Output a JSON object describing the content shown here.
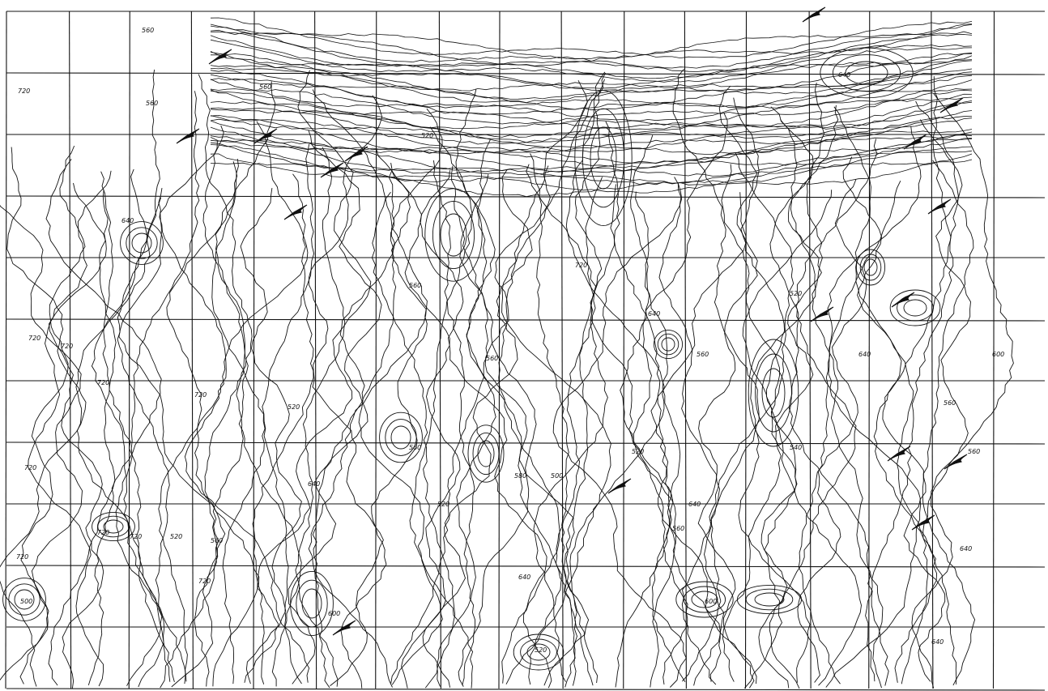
{
  "map": {
    "colors": {
      "background": "#ffffff",
      "ink": "#111111"
    },
    "grid": {
      "columns": 16,
      "rows": 11
    },
    "contour_labels": [
      "720",
      "720",
      "720",
      "720",
      "720",
      "720",
      "720",
      "720",
      "720",
      "720",
      "640",
      "640",
      "640",
      "640",
      "640",
      "640",
      "640",
      "640",
      "640",
      "560",
      "560",
      "560",
      "560",
      "560",
      "560",
      "560",
      "560",
      "560",
      "560",
      "520",
      "520",
      "520",
      "520",
      "520",
      "520",
      "580",
      "600",
      "500",
      "540",
      "600",
      "600",
      "720",
      "520",
      "560",
      "500"
    ]
  }
}
